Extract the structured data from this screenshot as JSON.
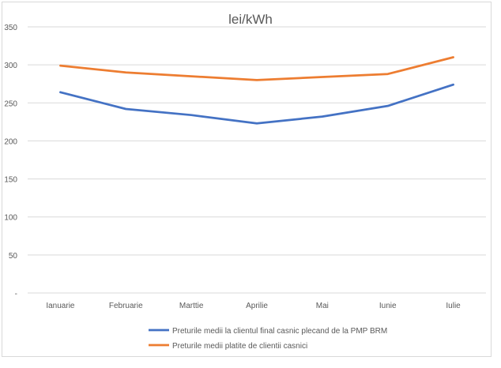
{
  "chart_data": {
    "type": "line",
    "title": "lei/kWh",
    "xlabel": "",
    "ylabel": "",
    "categories": [
      "Ianuarie",
      "Februarie",
      "Marttie",
      "Aprilie",
      "Mai",
      "Iunie",
      "Iulie"
    ],
    "ylim": [
      0,
      350
    ],
    "yticks": [
      0,
      50,
      100,
      150,
      200,
      250,
      300,
      350
    ],
    "ytick_labels": [
      "-",
      "50",
      "100",
      "150",
      "200",
      "250",
      "300",
      "350"
    ],
    "grid": true,
    "legend_position": "bottom",
    "series": [
      {
        "name": "Preturile medii la clientul final casnic plecand de la PMP BRM",
        "color": "#4472c4",
        "values": [
          264,
          242,
          234,
          223,
          232,
          246,
          274
        ]
      },
      {
        "name": "Preturile medii platite de clientii casnici",
        "color": "#ed7d31",
        "values": [
          299,
          290,
          285,
          280,
          284,
          288,
          310
        ]
      }
    ]
  }
}
